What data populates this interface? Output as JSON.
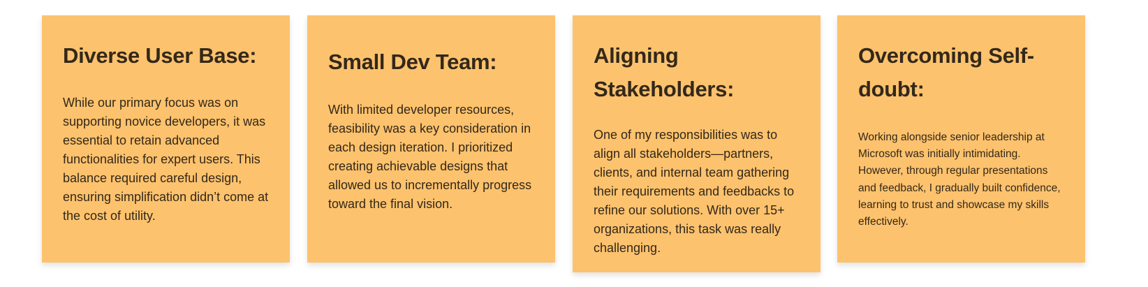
{
  "theme": {
    "card_color": "#fdc26d",
    "text_color": "#33281a"
  },
  "cards": [
    {
      "title": "Diverse User Base:",
      "body": "While our primary focus was on supporting novice developers, it was essential to retain advanced functionalities for expert users. This balance required careful design, ensuring simplification didn’t come at the cost of utility."
    },
    {
      "title": "Small Dev Team:",
      "body": "With limited developer resources, feasibility was a key consideration in each design iteration. I prioritized creating achievable designs that allowed us to incrementally progress toward the final vision."
    },
    {
      "title": "Aligning Stakeholders:",
      "body": "One of my responsibilities was to align all stakeholders—partners, clients, and internal team gathering their requirements and feedbacks to refine our solutions. With over 15+ organizations, this task was really challenging."
    },
    {
      "title": "Overcoming Self-doubt:",
      "body": "Working alongside senior leadership at Microsoft was initially intimidating. However, through regular presentations and feedback, I gradually built confidence, learning to trust and showcase my skills effectively."
    }
  ]
}
